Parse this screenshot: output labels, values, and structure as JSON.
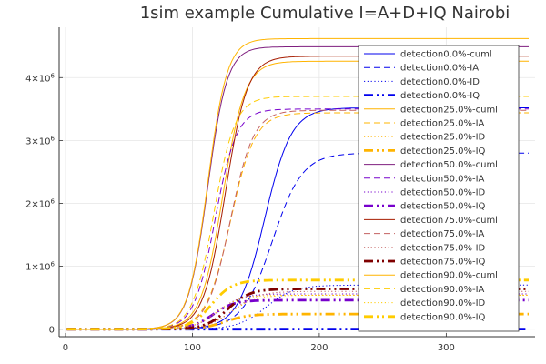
{
  "chart_data": {
    "type": "line",
    "title": "1sim example Cumulative I=A+D+IQ Nairobi",
    "xlabel": "",
    "ylabel": "",
    "xlim": [
      -5,
      370
    ],
    "ylim": [
      -120000,
      4800000
    ],
    "x_ticks": [
      0,
      100,
      200,
      300
    ],
    "y_ticks": [
      {
        "value": 0,
        "base": "0",
        "exp": ""
      },
      {
        "value": 1000000,
        "base": "1×10",
        "exp": "6"
      },
      {
        "value": 2000000,
        "base": "2×10",
        "exp": "6"
      },
      {
        "value": 3000000,
        "base": "3×10",
        "exp": "6"
      },
      {
        "value": 4000000,
        "base": "4×10",
        "exp": "6"
      }
    ],
    "grid": true,
    "legend_position": "right",
    "x_range": [
      1,
      365
    ],
    "series": [
      {
        "name": "detection0.0%-cuml",
        "color": "#0000ee",
        "style": "solid",
        "width": 1,
        "max": 3520000,
        "mid": 157,
        "k": 0.095
      },
      {
        "name": "detection0.0%-IA",
        "color": "#0000ee",
        "style": "dash",
        "width": 1,
        "max": 2800000,
        "mid": 163,
        "k": 0.085
      },
      {
        "name": "detection0.0%-ID",
        "color": "#0000ee",
        "style": "dot",
        "width": 1,
        "max": 700000,
        "mid": 158,
        "k": 0.09
      },
      {
        "name": "detection0.0%-IQ",
        "color": "#0000ee",
        "style": "dashdotdot",
        "width": 2.8,
        "max": 1000,
        "mid": 150,
        "k": 0.09
      },
      {
        "name": "detection25.0%-cuml",
        "color": "#ffb400",
        "style": "solid",
        "width": 1,
        "max": 4260000,
        "mid": 124,
        "k": 0.115
      },
      {
        "name": "detection25.0%-IA",
        "color": "#ffb400",
        "style": "dash",
        "width": 1,
        "max": 3440000,
        "mid": 130,
        "k": 0.105
      },
      {
        "name": "detection25.0%-ID",
        "color": "#ffb400",
        "style": "dot",
        "width": 1,
        "max": 540000,
        "mid": 130,
        "k": 0.1
      },
      {
        "name": "detection25.0%-IQ",
        "color": "#ffb400",
        "style": "dashdotdot",
        "width": 2.8,
        "max": 240000,
        "mid": 126,
        "k": 0.11
      },
      {
        "name": "detection50.0%-cuml",
        "color": "#7f1f7f",
        "style": "solid",
        "width": 1,
        "max": 4490000,
        "mid": 112,
        "k": 0.13
      },
      {
        "name": "detection50.0%-IA",
        "color": "#7700cc",
        "style": "dash",
        "width": 1,
        "max": 3500000,
        "mid": 118,
        "k": 0.12
      },
      {
        "name": "detection50.0%-ID",
        "color": "#7700cc",
        "style": "dot",
        "width": 1,
        "max": 560000,
        "mid": 120,
        "k": 0.11
      },
      {
        "name": "detection50.0%-IQ",
        "color": "#7700cc",
        "style": "dashdotdot",
        "width": 2.8,
        "max": 460000,
        "mid": 116,
        "k": 0.12
      },
      {
        "name": "detection75.0%-cuml",
        "color": "#a61c00",
        "style": "solid",
        "width": 1,
        "max": 4340000,
        "mid": 126,
        "k": 0.115
      },
      {
        "name": "detection75.0%-IA",
        "color": "#c46060",
        "style": "dash",
        "width": 1,
        "max": 3480000,
        "mid": 130,
        "k": 0.11
      },
      {
        "name": "detection75.0%-ID",
        "color": "#c46060",
        "style": "dot",
        "width": 1,
        "max": 600000,
        "mid": 132,
        "k": 0.1
      },
      {
        "name": "detection75.0%-IQ",
        "color": "#7f0000",
        "style": "dashdotdot",
        "width": 2.8,
        "max": 640000,
        "mid": 128,
        "k": 0.115
      },
      {
        "name": "detection90.0%-cuml",
        "color": "#ffb400",
        "style": "solid",
        "width": 1,
        "max": 4620000,
        "mid": 112,
        "k": 0.13
      },
      {
        "name": "detection90.0%-IA",
        "color": "#ffcc00",
        "style": "dash",
        "width": 1,
        "max": 3700000,
        "mid": 117,
        "k": 0.12
      },
      {
        "name": "detection90.0%-ID",
        "color": "#ffcc00",
        "style": "dot",
        "width": 1,
        "max": 540000,
        "mid": 119,
        "k": 0.11
      },
      {
        "name": "detection90.0%-IQ",
        "color": "#ffcc00",
        "style": "dashdotdot",
        "width": 2.8,
        "max": 780000,
        "mid": 115,
        "k": 0.12
      }
    ]
  }
}
